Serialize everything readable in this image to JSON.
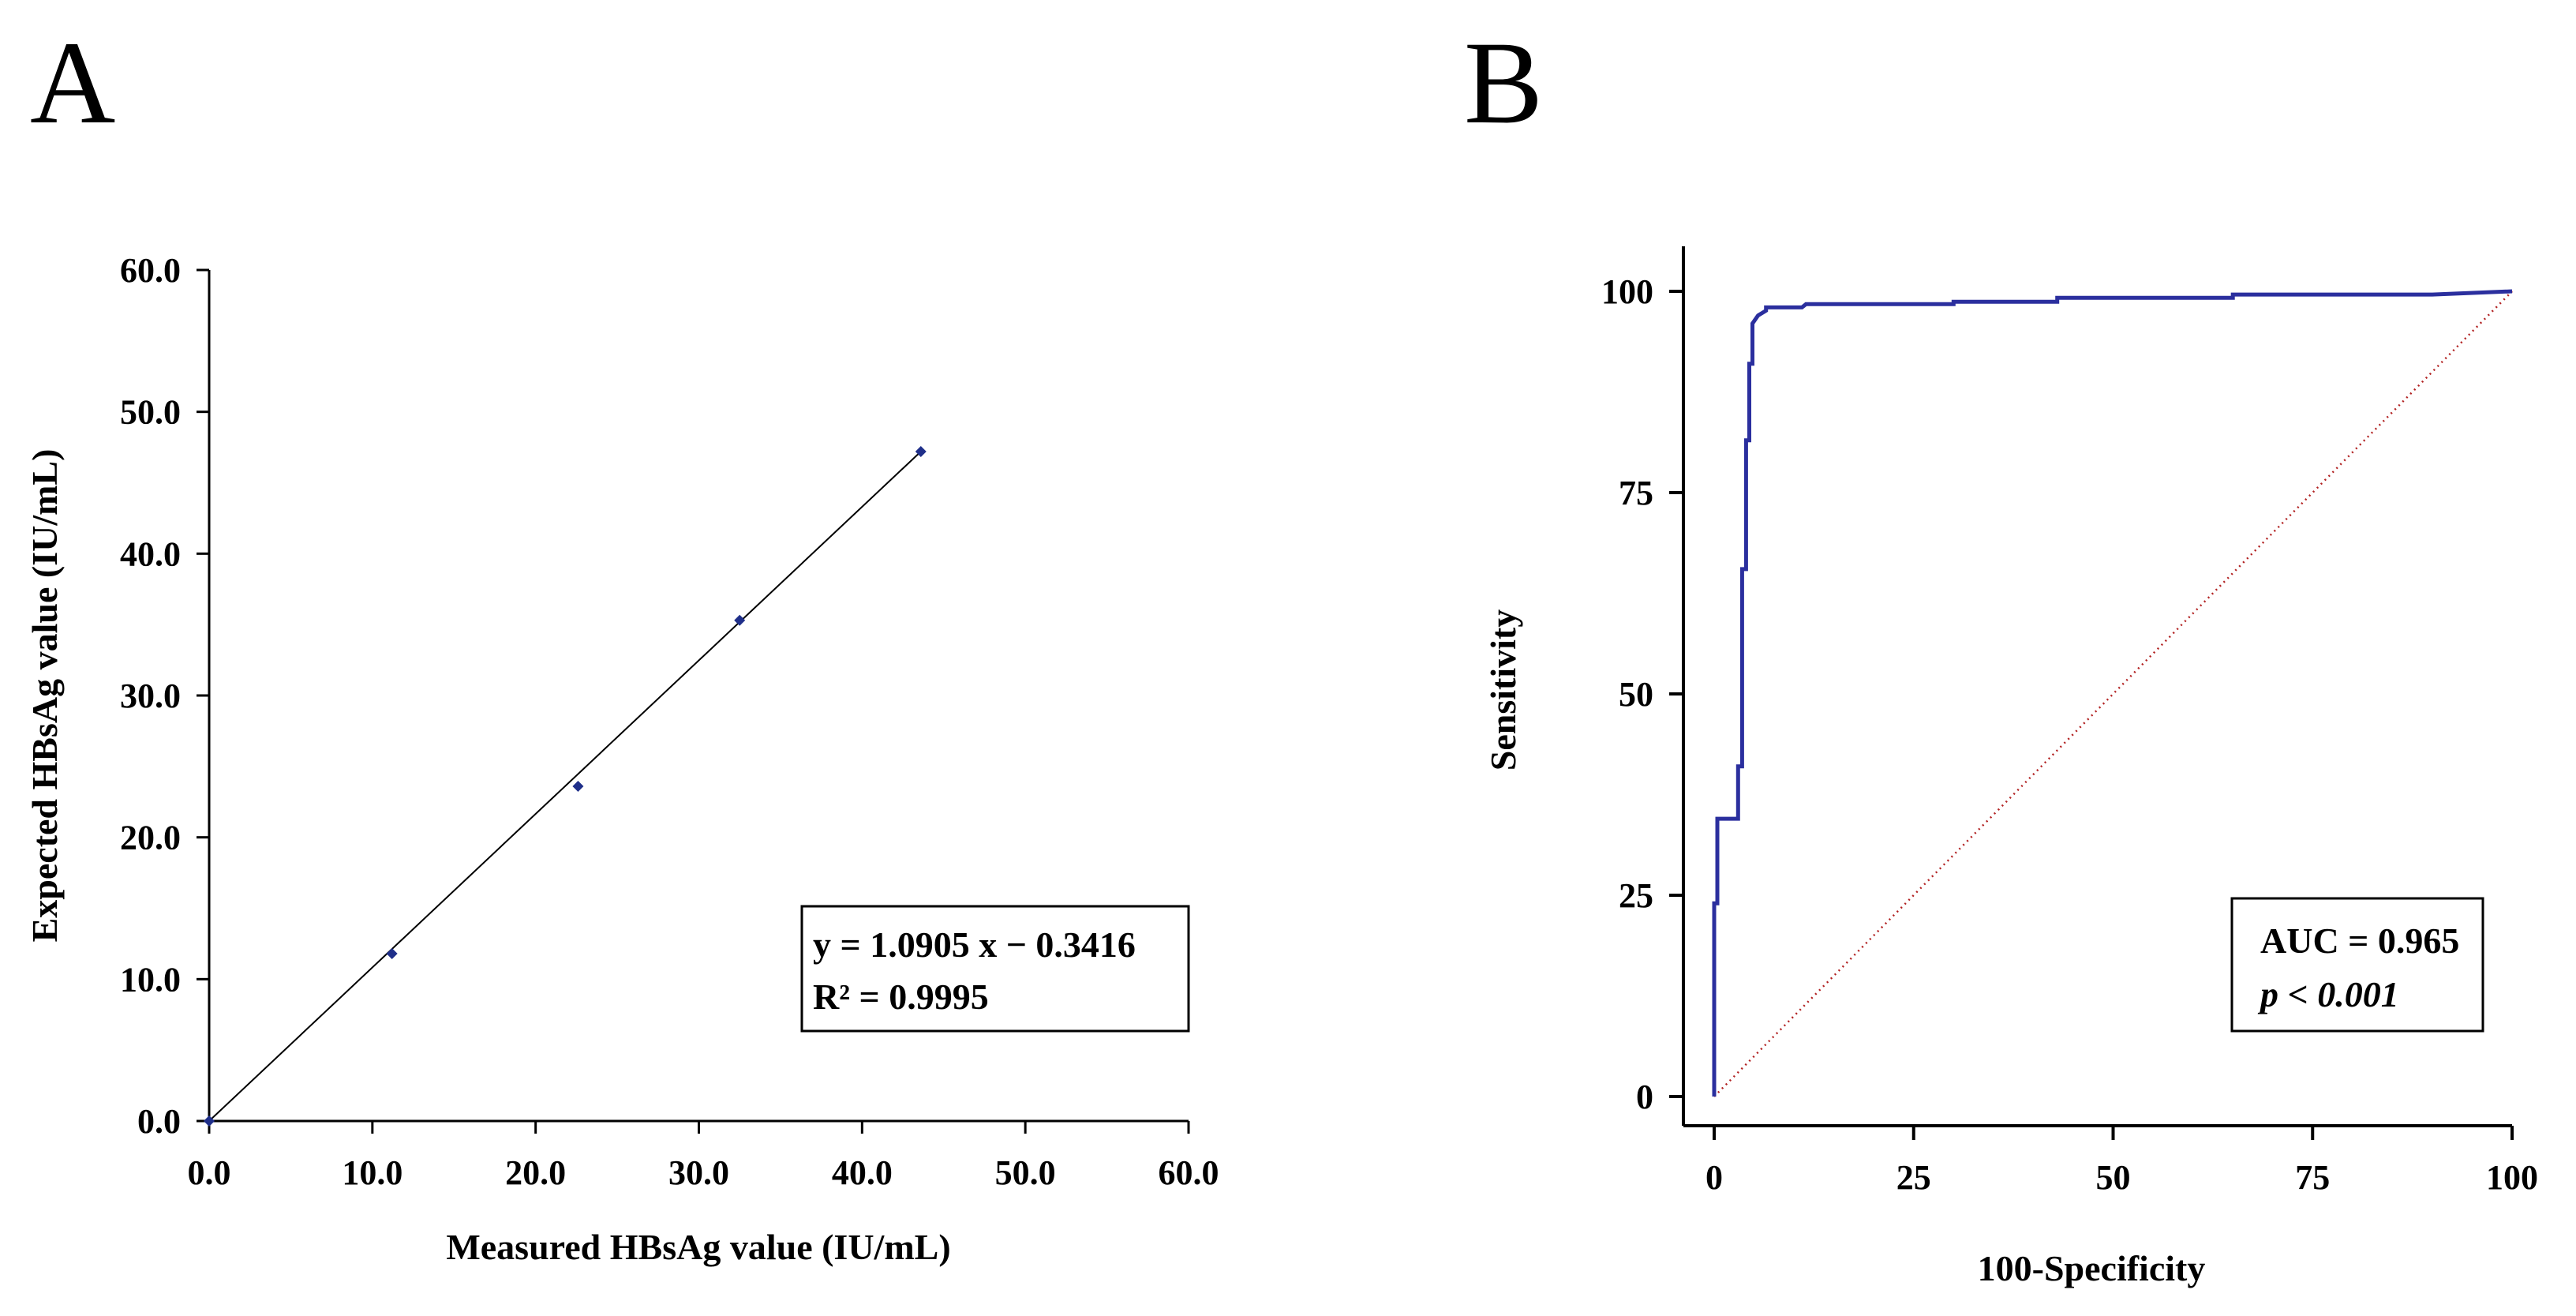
{
  "chart_data": [
    {
      "panel": "A",
      "type": "scatter",
      "xlabel": "Measured HBsAg value (IU/mL)",
      "ylabel": "Expected HBsAg value (IU/mL)",
      "xlim": [
        0,
        60
      ],
      "ylim": [
        0,
        60
      ],
      "xticks": [
        "0.0",
        "10.0",
        "20.0",
        "30.0",
        "40.0",
        "50.0",
        "60.0"
      ],
      "yticks": [
        "0.0",
        "10.0",
        "20.0",
        "30.0",
        "40.0",
        "50.0",
        "60.0"
      ],
      "points": [
        {
          "x": 0,
          "y": 0
        },
        {
          "x": 11.2,
          "y": 11.8
        },
        {
          "x": 22.6,
          "y": 23.6
        },
        {
          "x": 32.5,
          "y": 35.3
        },
        {
          "x": 43.6,
          "y": 47.2
        }
      ],
      "trendline": {
        "x_start": 0,
        "x_end": 43.6,
        "y_start": 0,
        "y_end": 47.2
      },
      "annotation_lines": [
        "y = 1.0905 x − 0.3416",
        "R² = 0.9995"
      ],
      "marker_color": "#1f2f8a"
    },
    {
      "panel": "B",
      "type": "line",
      "xlabel": "100-Specificity",
      "ylabel": "Sensitivity",
      "xlim": [
        0,
        100
      ],
      "ylim": [
        0,
        100
      ],
      "xticks": [
        "0",
        "25",
        "50",
        "75",
        "100"
      ],
      "yticks": [
        "0",
        "25",
        "50",
        "75",
        "100"
      ],
      "roc_curve": [
        [
          0,
          0
        ],
        [
          0,
          24
        ],
        [
          0.4,
          24
        ],
        [
          0.4,
          34.5
        ],
        [
          3,
          34.5
        ],
        [
          3,
          41
        ],
        [
          3.5,
          41
        ],
        [
          3.5,
          65.5
        ],
        [
          4,
          65.5
        ],
        [
          4,
          81.5
        ],
        [
          4.4,
          81.5
        ],
        [
          4.4,
          91
        ],
        [
          4.8,
          91
        ],
        [
          4.8,
          96
        ],
        [
          5.5,
          97
        ],
        [
          6.5,
          97.6
        ],
        [
          6.5,
          98
        ],
        [
          11,
          98
        ],
        [
          11.5,
          98.4
        ],
        [
          30,
          98.4
        ],
        [
          30,
          98.7
        ],
        [
          43,
          98.7
        ],
        [
          43,
          99.2
        ],
        [
          65,
          99.2
        ],
        [
          65,
          99.6
        ],
        [
          90,
          99.6
        ],
        [
          100,
          100
        ]
      ],
      "reference_line": [
        [
          0,
          0
        ],
        [
          100,
          100
        ]
      ],
      "annotation_lines": [
        "AUC = 0.965",
        "p < 0.001"
      ],
      "curve_color": "#2b2f9e",
      "reference_color": "#b22222"
    }
  ],
  "panel_labels": [
    "A",
    "B"
  ]
}
